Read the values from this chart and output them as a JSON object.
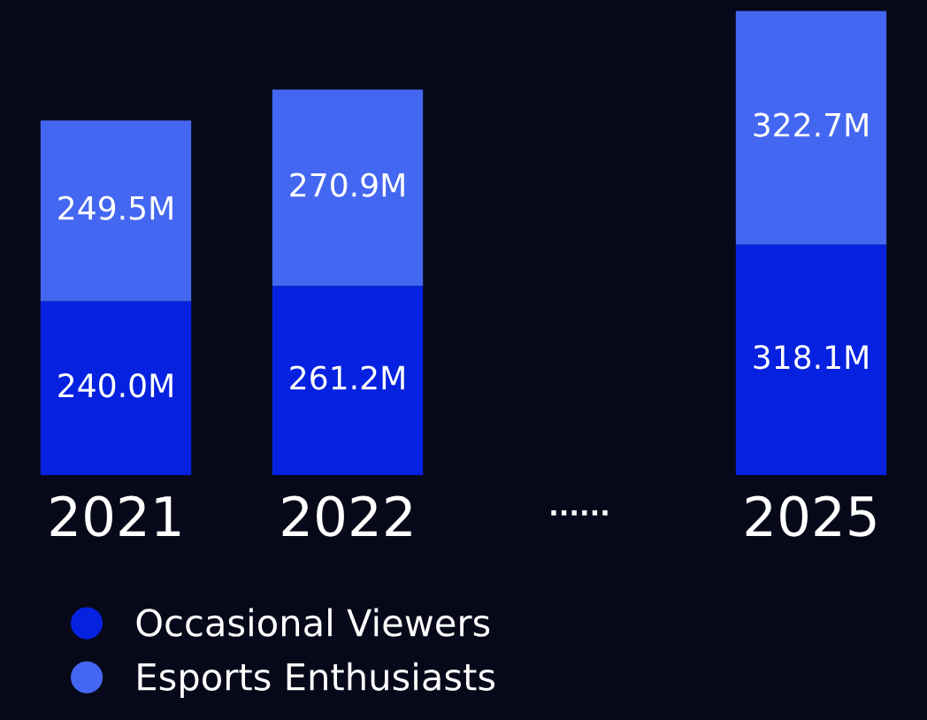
{
  "chart_data": {
    "type": "bar",
    "stacked": true,
    "data_labels": true,
    "legend": "bottom left",
    "marker": "circle",
    "categories": [
      "2021",
      "2022",
      "......",
      "2025"
    ],
    "series": [
      {
        "name": "Occasional Viewers",
        "color": "#0622e0",
        "values": [
          240.0,
          261.2,
          null,
          318.1
        ],
        "value_labels": [
          "240.0M",
          "261.2M",
          null,
          "318.1M"
        ]
      },
      {
        "name": "Esports Enthusiasts",
        "color": "#4467f2",
        "values": [
          249.5,
          270.9,
          null,
          322.7
        ],
        "value_labels": [
          "249.5M",
          "270.9M",
          null,
          "322.7M"
        ]
      }
    ]
  }
}
